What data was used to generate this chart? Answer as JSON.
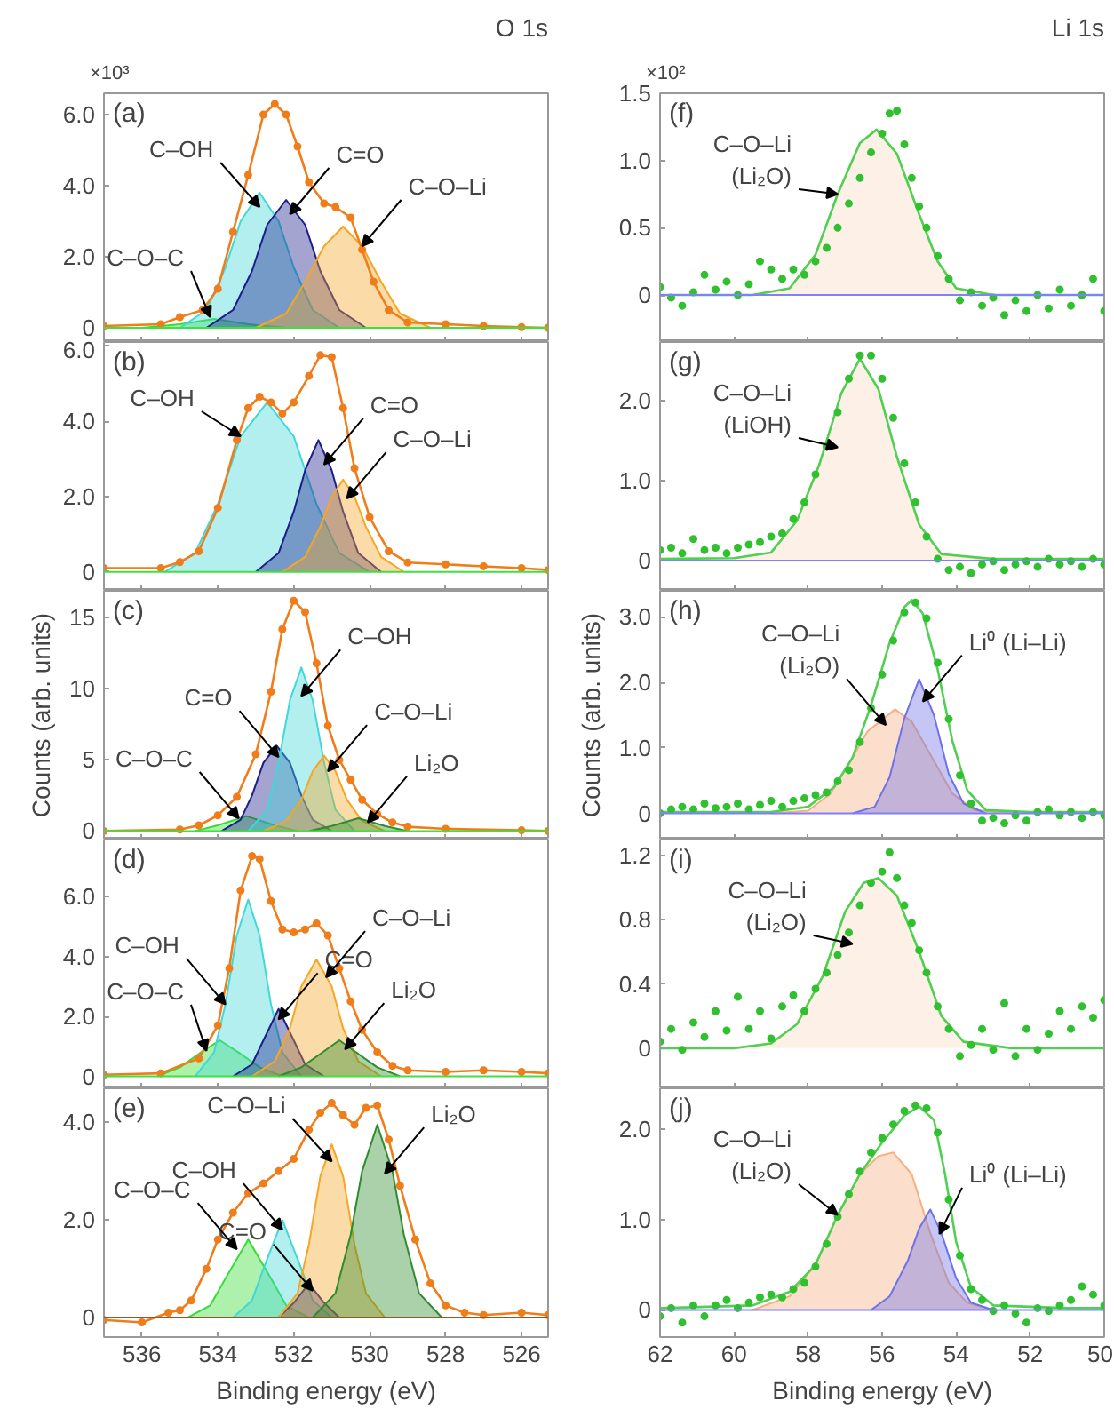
{
  "chart_data": [
    {
      "type": "line",
      "title": "O 1s",
      "annotations": [
        "(a)",
        "×10³",
        {
          "text": "C–OH",
          "x": 532.9,
          "y": 3.4
        },
        {
          "text": "C=O",
          "x": 532.1,
          "y": 3.2
        },
        {
          "text": "C–O–Li",
          "x": 530.2,
          "y": 2.3
        },
        {
          "text": "C–O–C",
          "x": 534.2,
          "y": 0.3
        }
      ],
      "xlim": [
        537.0,
        525.3
      ],
      "ylim": [
        -0.4,
        6.6
      ],
      "xticks": [
        536,
        534,
        532,
        530,
        528,
        526
      ],
      "yticks": [
        0,
        {
          "value": 2,
          "label": "2.0"
        },
        {
          "value": 4,
          "label": "4.0"
        },
        {
          "value": 6,
          "label": "6.0"
        }
      ],
      "tick_labels": "y",
      "ref_lines": [
        {
          "axis": "y",
          "value": 0,
          "color": "#40e040"
        }
      ],
      "series": [
        {
          "type": "area",
          "color": "#33dd33",
          "x": [
            536,
            535,
            534.1,
            533.2,
            532.2
          ],
          "values": [
            0,
            0.1,
            0.25,
            0.1,
            0
          ]
        },
        {
          "type": "area",
          "color": "#40d8d8",
          "x": [
            535.0,
            534.3,
            533.8,
            533.4,
            532.9,
            532.4,
            532.0,
            531.5,
            530.8
          ],
          "values": [
            0,
            0.5,
            1.7,
            3.0,
            3.8,
            3.0,
            1.7,
            0.5,
            0
          ]
        },
        {
          "type": "area",
          "color": "#1c1c8c",
          "x": [
            534.3,
            533.6,
            533.1,
            532.7,
            532.2,
            531.7,
            531.3,
            530.8,
            530.1
          ],
          "values": [
            0,
            0.5,
            1.6,
            2.9,
            3.6,
            2.9,
            1.6,
            0.5,
            0
          ]
        },
        {
          "type": "area",
          "color": "#f5a623",
          "x": [
            533.0,
            532.2,
            531.7,
            531.2,
            530.7,
            530.2,
            529.7,
            529.2,
            528.4
          ],
          "values": [
            0,
            0.4,
            1.3,
            2.3,
            2.85,
            2.3,
            1.3,
            0.4,
            0
          ]
        },
        {
          "color": "#f07d1a",
          "marker": "circle",
          "x": [
            537.0,
            535.5,
            535.0,
            534.4,
            534.0,
            533.6,
            533.2,
            532.8,
            532.5,
            532.2,
            531.9,
            531.6,
            531.2,
            530.9,
            530.5,
            530.2,
            529.9,
            529.5,
            529.0,
            528.0,
            527.0,
            526.0,
            525.3
          ],
          "values": [
            0.05,
            0.1,
            0.3,
            0.5,
            1.1,
            2.7,
            4.3,
            6.0,
            6.3,
            6.0,
            5.1,
            4.1,
            3.5,
            3.4,
            3.1,
            2.2,
            1.3,
            0.5,
            0.15,
            0.1,
            0.05,
            0.02,
            0.0
          ]
        }
      ]
    },
    {
      "type": "line",
      "annotations": [
        "(b)",
        {
          "text": "C–OH",
          "x": 533.4,
          "y": 3.6
        },
        {
          "text": "C=O",
          "x": 531.2,
          "y": 2.85
        },
        {
          "text": "C–O–Li",
          "x": 530.6,
          "y": 1.95
        }
      ],
      "xlim": [
        537.0,
        525.3
      ],
      "ylim": [
        -0.5,
        6.1
      ],
      "xticks": [
        536,
        534,
        532,
        530,
        528,
        526
      ],
      "yticks": [
        0,
        {
          "value": 2,
          "label": "2.0"
        },
        {
          "value": 4,
          "label": "4.0"
        },
        {
          "value": 6,
          "label": "6.0"
        }
      ],
      "tick_labels": "y",
      "ref_lines": [
        {
          "axis": "y",
          "value": 0,
          "color": "#40e040"
        }
      ],
      "series": [
        {
          "type": "area",
          "color": "#40d8d8",
          "x": [
            535.4,
            534.6,
            534.0,
            533.4,
            532.7,
            532.0,
            531.4,
            530.8,
            530.0
          ],
          "values": [
            0,
            0.5,
            1.8,
            3.6,
            4.5,
            3.6,
            1.8,
            0.5,
            0
          ]
        },
        {
          "type": "area",
          "color": "#1c1c8c",
          "x": [
            533.0,
            532.4,
            532.0,
            531.7,
            531.35,
            531.0,
            530.7,
            530.3,
            529.7
          ],
          "values": [
            0,
            0.5,
            1.6,
            2.7,
            3.5,
            2.7,
            1.6,
            0.5,
            0
          ]
        },
        {
          "type": "area",
          "color": "#f5a623",
          "x": [
            532.3,
            531.7,
            531.3,
            531.0,
            530.7,
            530.4,
            530.1,
            529.7,
            529.1
          ],
          "values": [
            0,
            0.4,
            1.2,
            2.0,
            2.45,
            2.0,
            1.2,
            0.4,
            0
          ]
        },
        {
          "color": "#f07d1a",
          "marker": "circle",
          "x": [
            537.0,
            535.5,
            535.0,
            534.5,
            534.0,
            533.5,
            533.2,
            532.9,
            532.6,
            532.3,
            532.0,
            531.6,
            531.3,
            531.0,
            530.7,
            530.4,
            530.0,
            529.5,
            529.0,
            528.0,
            527.0,
            526.0,
            525.3
          ],
          "values": [
            0.1,
            0.1,
            0.26,
            0.55,
            1.7,
            3.5,
            4.35,
            4.65,
            4.5,
            4.2,
            4.5,
            5.2,
            5.75,
            5.7,
            4.35,
            2.75,
            1.45,
            0.55,
            0.25,
            0.2,
            0.15,
            0.1,
            0.05
          ]
        }
      ]
    },
    {
      "type": "line",
      "ylabel": "Counts (arb. units)",
      "annotations": [
        "(c)",
        {
          "text": "C–OH",
          "x": 531.8,
          "y": 9.5
        },
        {
          "text": "C=O",
          "x": 532.4,
          "y": 5.2
        },
        {
          "text": "C–O–Li",
          "x": 531.1,
          "y": 4.2
        },
        {
          "text": "C–O–C",
          "x": 533.45,
          "y": 0.9
        },
        {
          "text": "Li₂O",
          "x": 530.05,
          "y": 0.6
        }
      ],
      "xlim": [
        537.0,
        525.3
      ],
      "ylim": [
        -0.6,
        16.9
      ],
      "xticks": [
        536,
        534,
        532,
        530,
        528,
        526
      ],
      "yticks": [
        0,
        5,
        10,
        15
      ],
      "tick_labels": "y",
      "ref_lines": [
        {
          "axis": "y",
          "value": 0,
          "color": "#40e040"
        }
      ],
      "series": [
        {
          "type": "area",
          "color": "#33dd33",
          "x": [
            534.6,
            534.0,
            533.25,
            532.5,
            531.9
          ],
          "values": [
            0,
            0.4,
            1.05,
            0.4,
            0
          ]
        },
        {
          "type": "area",
          "color": "#1c1c8c",
          "x": [
            533.9,
            533.4,
            533.1,
            532.8,
            532.45,
            532.1,
            531.8,
            531.5,
            531.0
          ],
          "values": [
            0,
            0.8,
            2.5,
            4.8,
            6.0,
            4.8,
            2.5,
            0.8,
            0
          ]
        },
        {
          "type": "area",
          "color": "#40d8d8",
          "x": [
            533.2,
            532.7,
            532.4,
            532.1,
            531.8,
            531.5,
            531.2,
            530.9,
            530.4
          ],
          "values": [
            0,
            1.5,
            4.8,
            9.2,
            11.5,
            9.2,
            4.8,
            1.5,
            0
          ]
        },
        {
          "type": "area",
          "color": "#f5a623",
          "x": [
            532.8,
            532.2,
            531.8,
            531.5,
            531.2,
            530.9,
            530.6,
            530.2,
            529.6
          ],
          "values": [
            0,
            0.7,
            2.2,
            4.2,
            5.3,
            4.2,
            2.2,
            0.7,
            0
          ]
        },
        {
          "type": "area",
          "color": "#2e8b2e",
          "x": [
            531.6,
            531.0,
            530.3,
            529.6,
            529.0
          ],
          "values": [
            0,
            0.35,
            0.9,
            0.35,
            0
          ]
        },
        {
          "color": "#f07d1a",
          "marker": "circle",
          "x": [
            537.0,
            535.0,
            534.5,
            534.0,
            533.5,
            533.0,
            532.6,
            532.3,
            532.0,
            531.7,
            531.4,
            531.1,
            530.8,
            530.5,
            530.2,
            529.8,
            529.4,
            529.0,
            528.0,
            526.0,
            525.3
          ],
          "values": [
            0,
            0.1,
            0.4,
            1.1,
            2.4,
            5.4,
            9.8,
            14.2,
            16.2,
            15.4,
            11.8,
            7.4,
            5.0,
            3.6,
            2.2,
            1.2,
            0.6,
            0.3,
            0.15,
            0.05,
            0.0
          ]
        }
      ]
    },
    {
      "type": "line",
      "annotations": [
        "(d)",
        {
          "text": "C–OH",
          "x": 533.8,
          "y": 2.4
        },
        {
          "text": "C=O",
          "x": 532.4,
          "y": 1.9
        },
        {
          "text": "C–O–Li",
          "x": 531.15,
          "y": 3.3
        },
        {
          "text": "C–O–C",
          "x": 534.3,
          "y": 0.85
        },
        {
          "text": "Li₂O",
          "x": 530.65,
          "y": 0.9
        }
      ],
      "xlim": [
        537.0,
        525.3
      ],
      "ylim": [
        -0.4,
        7.9
      ],
      "xticks": [
        536,
        534,
        532,
        530,
        528,
        526
      ],
      "yticks": [
        0,
        {
          "value": 2,
          "label": "2.0"
        },
        {
          "value": 4,
          "label": "4.0"
        },
        {
          "value": 6,
          "label": "6.0"
        }
      ],
      "tick_labels": "y",
      "ref_lines": [
        {
          "axis": "y",
          "value": 0,
          "color": "#40e040"
        }
      ],
      "series": [
        {
          "type": "area",
          "color": "#33dd33",
          "x": [
            535.6,
            535.0,
            534.5,
            533.95,
            533.4,
            532.9,
            532.3
          ],
          "values": [
            0,
            0.3,
            0.75,
            1.2,
            0.75,
            0.3,
            0
          ]
        },
        {
          "type": "area",
          "color": "#40d8d8",
          "x": [
            534.6,
            534.1,
            533.8,
            533.5,
            533.2,
            532.9,
            532.6,
            532.3,
            531.8
          ],
          "values": [
            0,
            0.8,
            2.4,
            4.7,
            5.9,
            4.7,
            2.4,
            0.8,
            0
          ]
        },
        {
          "type": "area",
          "color": "#1c1c8c",
          "x": [
            533.6,
            533.1,
            532.8,
            532.4,
            532.0,
            531.7,
            531.2
          ],
          "values": [
            0,
            0.4,
            1.2,
            2.25,
            1.2,
            0.4,
            0
          ]
        },
        {
          "type": "area",
          "color": "#f5a623",
          "x": [
            533.1,
            532.5,
            532.1,
            531.8,
            531.4,
            531.0,
            530.7,
            530.3,
            529.7
          ],
          "values": [
            0,
            0.5,
            1.6,
            3.0,
            3.9,
            3.0,
            1.6,
            0.5,
            0
          ]
        },
        {
          "type": "area",
          "color": "#2e8b2e",
          "x": [
            532.4,
            531.8,
            531.3,
            530.8,
            530.3,
            529.8,
            529.2
          ],
          "values": [
            0,
            0.3,
            0.75,
            1.2,
            0.75,
            0.3,
            0
          ]
        },
        {
          "color": "#f07d1a",
          "marker": "circle",
          "x": [
            537.0,
            535.5,
            534.5,
            534.0,
            533.7,
            533.4,
            533.1,
            532.9,
            532.6,
            532.3,
            532.0,
            531.7,
            531.4,
            531.1,
            530.8,
            530.5,
            530.2,
            529.8,
            529.4,
            529.0,
            528.0,
            527.0,
            526.0,
            525.3
          ],
          "values": [
            0.05,
            0.1,
            0.6,
            1.7,
            3.6,
            6.2,
            7.35,
            7.25,
            5.85,
            4.9,
            4.8,
            4.9,
            5.1,
            4.7,
            3.6,
            2.5,
            1.55,
            0.8,
            0.35,
            0.2,
            0.15,
            0.2,
            0.15,
            0.1
          ]
        }
      ]
    },
    {
      "type": "line",
      "xlabel": "Binding energy (eV)",
      "annotations": [
        "(e)",
        {
          "text": "C–OH",
          "x": 532.3,
          "y": 1.8
        },
        {
          "text": "C=O",
          "x": 531.5,
          "y": 0.55
        },
        {
          "text": "C–O–Li",
          "x": 531.0,
          "y": 3.2
        },
        {
          "text": "C–O–C",
          "x": 533.5,
          "y": 1.4
        },
        {
          "text": "Li₂O",
          "x": 529.6,
          "y": 2.95
        }
      ],
      "xlim": [
        537.0,
        525.3
      ],
      "ylim": [
        -0.4,
        4.7
      ],
      "xticks": [
        536,
        534,
        532,
        530,
        528,
        526
      ],
      "yticks": [
        0,
        {
          "value": 2,
          "label": "2.0"
        },
        {
          "value": 4,
          "label": "4.0"
        }
      ],
      "ref_lines": [
        {
          "axis": "y",
          "value": 0,
          "color": "#8b5a2b"
        }
      ],
      "series": [
        {
          "type": "area",
          "color": "#33dd33",
          "x": [
            534.8,
            534.2,
            533.8,
            533.2,
            532.6,
            532.2,
            531.6
          ],
          "values": [
            0,
            0.25,
            0.8,
            1.6,
            0.8,
            0.25,
            0
          ]
        },
        {
          "type": "area",
          "color": "#40d8d8",
          "x": [
            533.6,
            533.1,
            532.8,
            532.3,
            531.8,
            531.5,
            531.0
          ],
          "values": [
            0,
            0.35,
            1.0,
            2.0,
            1.0,
            0.35,
            0
          ]
        },
        {
          "type": "area",
          "color": "#1c1c8c",
          "x": [
            532.4,
            532.0,
            531.6,
            531.2,
            530.8
          ],
          "values": [
            0,
            0.3,
            0.7,
            0.3,
            0
          ]
        },
        {
          "type": "area",
          "color": "#f5a623",
          "x": [
            532.4,
            531.9,
            531.6,
            531.3,
            531.0,
            530.7,
            530.4,
            530.1,
            529.6
          ],
          "values": [
            0,
            0.5,
            1.5,
            2.9,
            3.55,
            2.9,
            1.5,
            0.5,
            0
          ]
        },
        {
          "type": "area",
          "color": "#2e8b2e",
          "x": [
            531.5,
            530.9,
            530.5,
            530.2,
            529.8,
            529.4,
            529.1,
            528.7,
            528.1
          ],
          "values": [
            0,
            0.5,
            1.7,
            3.0,
            3.95,
            3.0,
            1.7,
            0.5,
            0
          ]
        },
        {
          "color": "#f07d1a",
          "marker": "circle",
          "x": [
            537.0,
            536.0,
            535.3,
            535.0,
            534.7,
            534.3,
            534.0,
            533.6,
            533.2,
            532.8,
            532.4,
            532.0,
            531.6,
            531.3,
            531.0,
            530.7,
            530.4,
            530.1,
            529.8,
            529.5,
            529.2,
            528.8,
            528.4,
            528.0,
            527.5,
            527.0,
            526.0,
            525.3
          ],
          "values": [
            -0.05,
            -0.1,
            0.1,
            0.15,
            0.35,
            1.0,
            1.6,
            2.15,
            2.55,
            2.75,
            3.0,
            3.25,
            3.85,
            4.2,
            4.4,
            4.15,
            3.95,
            4.3,
            4.35,
            3.65,
            2.7,
            1.6,
            0.7,
            0.25,
            0.1,
            0.05,
            0.1,
            0.05
          ]
        }
      ]
    },
    {
      "type": "scatter",
      "title": "Li 1s",
      "annotations": [
        "(f)",
        "×10²",
        {
          "text": "C–O–Li\n(Li₂O)",
          "x": 57.2,
          "y": 0.75
        }
      ],
      "xlim": [
        62,
        50
      ],
      "ylim": [
        -0.35,
        1.5
      ],
      "xticks": [
        62,
        60,
        58,
        56,
        54,
        52,
        50
      ],
      "yticks": [
        0,
        0.5,
        {
          "value": 1,
          "label": "1.0"
        },
        1.5
      ],
      "tick_labels": "y",
      "ref_lines": [
        {
          "axis": "y",
          "value": 0,
          "color": "#8080ff"
        }
      ],
      "series": [
        {
          "type": "area",
          "color": "#fbdcc4",
          "x": [
            59.5,
            58.5,
            57.8,
            57.2,
            56.6,
            56.15,
            55.6,
            55.0,
            54.5,
            54.0,
            53.0
          ],
          "values": [
            0,
            0.05,
            0.3,
            0.75,
            1.13,
            1.23,
            1.05,
            0.6,
            0.25,
            0.05,
            0
          ]
        },
        {
          "type": "line",
          "color": "#50d050",
          "x": [
            62.0,
            59.5,
            58.5,
            57.8,
            57.2,
            56.6,
            56.15,
            55.6,
            55.0,
            54.5,
            54.0,
            53.0,
            50.0
          ],
          "values": [
            0,
            0,
            0.05,
            0.3,
            0.75,
            1.13,
            1.23,
            1.05,
            0.6,
            0.25,
            0.05,
            0,
            0
          ]
        },
        {
          "color": "#30c030",
          "x": [
            62.0,
            61.7,
            61.4,
            61.1,
            60.8,
            60.5,
            60.2,
            59.9,
            59.6,
            59.3,
            59.0,
            58.7,
            58.4,
            58.1,
            57.8,
            57.5,
            57.2,
            56.9,
            56.6,
            56.3,
            56.0,
            55.8,
            55.6,
            55.4,
            55.2,
            55.0,
            54.8,
            54.5,
            54.2,
            53.9,
            53.6,
            53.3,
            53.0,
            52.7,
            52.4,
            52.1,
            51.8,
            51.5,
            51.2,
            50.9,
            50.6,
            50.3,
            50.0
          ],
          "values": [
            0.06,
            -0.02,
            -0.08,
            0.02,
            0.15,
            0.04,
            0.1,
            0.0,
            0.08,
            0.25,
            0.19,
            0.12,
            0.19,
            0.15,
            0.25,
            0.35,
            0.5,
            0.68,
            0.87,
            1.06,
            1.2,
            1.35,
            1.37,
            1.12,
            0.87,
            0.66,
            0.5,
            0.29,
            0.12,
            -0.04,
            0.02,
            -0.08,
            -0.02,
            -0.15,
            -0.04,
            -0.12,
            0.0,
            -0.1,
            0.04,
            -0.08,
            0.0,
            0.12,
            -0.12
          ]
        }
      ]
    },
    {
      "type": "scatter",
      "annotations": [
        "(g)",
        {
          "text": "C–O–Li\n(LiOH)",
          "x": 57.2,
          "y": 1.42
        }
      ],
      "xlim": [
        62,
        50
      ],
      "ylim": [
        -0.38,
        2.74
      ],
      "xticks": [
        62,
        60,
        58,
        56,
        54,
        52,
        50
      ],
      "yticks": [
        0,
        {
          "value": 1,
          "label": "1.0"
        },
        {
          "value": 2,
          "label": "2.0"
        }
      ],
      "tick_labels": "y",
      "ref_lines": [
        {
          "axis": "y",
          "value": 0,
          "color": "#8080ff"
        }
      ],
      "series": [
        {
          "type": "area",
          "color": "#fbdcc4",
          "x": [
            60.0,
            59.0,
            58.3,
            57.7,
            57.1,
            56.6,
            56.1,
            55.6,
            55.0,
            54.4,
            53.0,
            50.0
          ],
          "values": [
            0.03,
            0.1,
            0.5,
            1.2,
            2.1,
            2.53,
            2.15,
            1.3,
            0.45,
            0.08,
            0,
            0
          ]
        },
        {
          "type": "line",
          "color": "#50d050",
          "x": [
            62.0,
            60.0,
            59.0,
            58.3,
            57.7,
            57.1,
            56.6,
            56.1,
            55.6,
            55.0,
            54.4,
            53.0,
            50.0
          ],
          "values": [
            0.02,
            0.03,
            0.1,
            0.5,
            1.2,
            2.1,
            2.53,
            2.15,
            1.3,
            0.45,
            0.08,
            0.02,
            0.02
          ]
        },
        {
          "color": "#30c030",
          "x": [
            62.0,
            61.7,
            61.4,
            61.1,
            60.8,
            60.5,
            60.2,
            59.9,
            59.6,
            59.3,
            59.0,
            58.7,
            58.4,
            58.1,
            57.8,
            57.5,
            57.2,
            56.9,
            56.6,
            56.3,
            56.0,
            55.7,
            55.4,
            55.1,
            54.8,
            54.5,
            54.2,
            53.9,
            53.6,
            53.3,
            53.0,
            52.7,
            52.4,
            52.1,
            51.8,
            51.5,
            51.2,
            50.9,
            50.6,
            50.3,
            50.0
          ],
          "values": [
            0.13,
            0.16,
            0.09,
            0.27,
            0.13,
            0.16,
            0.09,
            0.16,
            0.2,
            0.23,
            0.3,
            0.34,
            0.52,
            0.73,
            1.08,
            1.43,
            1.86,
            2.28,
            2.57,
            2.57,
            2.28,
            1.79,
            1.22,
            0.73,
            0.3,
            0.02,
            -0.12,
            -0.08,
            -0.16,
            -0.05,
            -0.01,
            -0.12,
            -0.05,
            -0.01,
            -0.08,
            0.02,
            -0.05,
            -0.01,
            -0.08,
            0.02,
            -0.05
          ]
        }
      ]
    },
    {
      "type": "scatter",
      "ylabel": "Counts (arb. units)",
      "annotations": [
        "(h)",
        {
          "text": "C–O–Li\n(Li₂O)",
          "x": 55.9,
          "y": 1.35
        },
        {
          "text": "Li⁰ (Li–Li)",
          "x": 54.9,
          "y": 1.71
        }
      ],
      "xlim": [
        62,
        50
      ],
      "ylim": [
        -0.4,
        3.4
      ],
      "xticks": [
        62,
        60,
        58,
        56,
        54,
        52,
        50
      ],
      "yticks": [
        0,
        {
          "value": 1,
          "label": "1.0"
        },
        {
          "value": 2,
          "label": "2.0"
        },
        {
          "value": 3,
          "label": "3.0"
        }
      ],
      "tick_labels": "y",
      "ref_lines": [
        {
          "axis": "y",
          "value": 0,
          "color": "#8080ff"
        }
      ],
      "series": [
        {
          "type": "area",
          "color": "#f5b080",
          "x": [
            59.0,
            58.0,
            57.4,
            56.9,
            56.4,
            55.65,
            55.2,
            54.6,
            54.1,
            53.5,
            52.5
          ],
          "values": [
            0,
            0.04,
            0.3,
            0.75,
            1.25,
            1.59,
            1.4,
            0.8,
            0.3,
            0.05,
            0
          ]
        },
        {
          "type": "area",
          "color": "#7070e8",
          "x": [
            56.8,
            56.2,
            55.8,
            55.4,
            55.0,
            54.6,
            54.2,
            53.8,
            53.2
          ],
          "values": [
            0,
            0.1,
            0.55,
            1.45,
            2.05,
            1.5,
            0.6,
            0.15,
            0
          ]
        },
        {
          "type": "line",
          "color": "#50d050",
          "x": [
            62.0,
            59.0,
            58.0,
            57.3,
            56.8,
            56.3,
            55.8,
            55.4,
            55.2,
            54.9,
            54.5,
            54.1,
            53.7,
            53.2,
            52.0,
            50.0
          ],
          "values": [
            0.02,
            0.02,
            0.1,
            0.4,
            0.85,
            1.65,
            2.6,
            3.15,
            3.26,
            3.05,
            2.2,
            1.1,
            0.35,
            0.05,
            0.02,
            0.02
          ]
        },
        {
          "color": "#30c030",
          "x": [
            62.0,
            61.7,
            61.4,
            61.1,
            60.8,
            60.5,
            60.2,
            59.9,
            59.6,
            59.3,
            59.0,
            58.7,
            58.4,
            58.1,
            57.8,
            57.5,
            57.2,
            56.9,
            56.6,
            56.3,
            56.0,
            55.7,
            55.4,
            55.1,
            54.8,
            54.5,
            54.2,
            53.9,
            53.6,
            53.3,
            53.0,
            52.7,
            52.4,
            52.1,
            51.8,
            51.5,
            51.2,
            50.9,
            50.6,
            50.3,
            50.0
          ],
          "values": [
            0.0,
            0.06,
            0.1,
            0.06,
            0.15,
            0.08,
            0.1,
            0.15,
            0.06,
            0.13,
            0.19,
            0.1,
            0.19,
            0.23,
            0.28,
            0.32,
            0.49,
            0.66,
            1.09,
            1.61,
            2.12,
            2.64,
            3.07,
            3.22,
            2.98,
            2.3,
            1.44,
            0.58,
            0.15,
            -0.11,
            -0.07,
            -0.15,
            -0.03,
            -0.11,
            0.02,
            0.06,
            -0.03,
            0.02,
            -0.07,
            0.02,
            -0.03
          ]
        }
      ]
    },
    {
      "type": "scatter",
      "annotations": [
        "(i)",
        {
          "text": "C–O–Li\n(Li₂O)",
          "x": 56.8,
          "y": 0.65
        }
      ],
      "xlim": [
        62,
        50
      ],
      "ylim": [
        -0.25,
        1.3
      ],
      "xticks": [
        62,
        60,
        58,
        56,
        54,
        52,
        50
      ],
      "yticks": [
        0,
        0.4,
        0.8,
        1.2
      ],
      "tick_labels": "y",
      "series": [
        {
          "type": "area",
          "color": "#fbdcc4",
          "x": [
            60.0,
            59.0,
            58.3,
            57.6,
            57.0,
            56.5,
            56.1,
            55.6,
            55.0,
            54.4,
            53.8,
            52.5,
            50.0
          ],
          "values": [
            0,
            0.03,
            0.15,
            0.45,
            0.85,
            1.03,
            1.06,
            0.95,
            0.6,
            0.2,
            0.04,
            0,
            0
          ]
        },
        {
          "type": "line",
          "color": "#50d050",
          "x": [
            62.0,
            60.0,
            59.0,
            58.3,
            57.6,
            57.0,
            56.5,
            56.1,
            55.6,
            55.0,
            54.4,
            53.8,
            52.5,
            50.0
          ],
          "values": [
            0,
            0,
            0.03,
            0.15,
            0.45,
            0.85,
            1.03,
            1.06,
            0.95,
            0.6,
            0.2,
            0.04,
            0,
            0
          ]
        },
        {
          "color": "#30c030",
          "x": [
            62.0,
            61.7,
            61.4,
            61.1,
            60.8,
            60.5,
            60.2,
            59.9,
            59.6,
            59.3,
            59.0,
            58.7,
            58.4,
            58.1,
            57.8,
            57.5,
            57.2,
            56.9,
            56.6,
            56.3,
            56.0,
            55.8,
            55.6,
            55.4,
            55.2,
            55.0,
            54.8,
            54.5,
            54.2,
            53.9,
            53.6,
            53.3,
            53.0,
            52.7,
            52.4,
            52.1,
            51.8,
            51.5,
            51.2,
            50.9,
            50.6,
            50.3,
            50.0
          ],
          "values": [
            0.04,
            0.12,
            -0.01,
            0.16,
            0.07,
            0.23,
            0.11,
            0.32,
            0.12,
            0.23,
            0.06,
            0.26,
            0.33,
            0.23,
            0.37,
            0.47,
            0.58,
            0.72,
            0.89,
            1.03,
            1.1,
            1.22,
            1.06,
            0.89,
            0.78,
            0.61,
            0.47,
            0.26,
            0.12,
            -0.05,
            0.02,
            0.12,
            -0.01,
            0.28,
            -0.05,
            0.12,
            -0.01,
            0.09,
            0.23,
            0.12,
            0.26,
            0.19,
            0.3
          ]
        }
      ]
    },
    {
      "type": "scatter",
      "xlabel": "Binding energy (eV)",
      "annotations": [
        "(j)",
        {
          "text": "C–O–Li\n(Li₂O)",
          "x": 57.2,
          "y": 1.05
        },
        {
          "text": "Li⁰ (Li–Li)",
          "x": 54.45,
          "y": 0.84
        }
      ],
      "xlim": [
        62,
        50
      ],
      "ylim": [
        -0.3,
        2.45
      ],
      "xticks": [
        62,
        60,
        58,
        56,
        54,
        52,
        50
      ],
      "yticks": [
        0,
        {
          "value": 1,
          "label": "1.0"
        },
        {
          "value": 2,
          "label": "2.0"
        }
      ],
      "ref_lines": [
        {
          "axis": "y",
          "value": 0,
          "color": "#8080ff"
        }
      ],
      "series": [
        {
          "type": "area",
          "color": "#f5b080",
          "x": [
            59.5,
            58.5,
            57.8,
            57.2,
            56.6,
            56.1,
            55.7,
            55.2,
            54.7,
            54.2,
            53.7,
            53.0
          ],
          "values": [
            0,
            0.15,
            0.5,
            1.05,
            1.5,
            1.7,
            1.74,
            1.5,
            0.85,
            0.3,
            0.08,
            0
          ]
        },
        {
          "type": "area",
          "color": "#7070e8",
          "x": [
            56.3,
            55.8,
            55.3,
            55.0,
            54.7,
            54.4,
            54.0,
            53.6,
            53.0
          ],
          "values": [
            0,
            0.15,
            0.55,
            0.9,
            1.11,
            0.85,
            0.35,
            0.08,
            0
          ]
        },
        {
          "type": "line",
          "color": "#50d050",
          "x": [
            62.0,
            59.5,
            58.5,
            57.8,
            57.2,
            56.6,
            56.0,
            55.4,
            55.0,
            54.6,
            54.3,
            54.0,
            53.6,
            53.0,
            51.0,
            50.0
          ],
          "values": [
            0.02,
            0.05,
            0.2,
            0.5,
            1.05,
            1.5,
            1.85,
            2.15,
            2.25,
            2.1,
            1.5,
            0.75,
            0.25,
            0.05,
            0.02,
            0.02
          ]
        },
        {
          "color": "#30c030",
          "x": [
            62.0,
            61.7,
            61.4,
            61.1,
            60.8,
            60.5,
            60.2,
            59.9,
            59.6,
            59.3,
            59.0,
            58.7,
            58.4,
            58.1,
            57.8,
            57.5,
            57.2,
            56.9,
            56.6,
            56.3,
            56.0,
            55.7,
            55.4,
            55.1,
            54.8,
            54.5,
            54.2,
            53.9,
            53.6,
            53.3,
            53.0,
            52.7,
            52.4,
            52.1,
            51.8,
            51.5,
            51.2,
            50.9,
            50.6,
            50.3,
            50.0
          ],
          "values": [
            -0.07,
            0.02,
            -0.14,
            0.05,
            -0.07,
            0.05,
            0.11,
            0.02,
            0.08,
            0.14,
            0.17,
            0.14,
            0.23,
            0.3,
            0.48,
            0.73,
            1.03,
            1.28,
            1.53,
            1.74,
            1.9,
            2.05,
            2.2,
            2.26,
            2.23,
            1.96,
            1.22,
            0.6,
            0.23,
            0.11,
            -0.01,
            0.05,
            -0.04,
            -0.14,
            0.02,
            -0.01,
            0.05,
            0.11,
            0.26,
            0.17,
            0.05
          ]
        }
      ]
    }
  ]
}
